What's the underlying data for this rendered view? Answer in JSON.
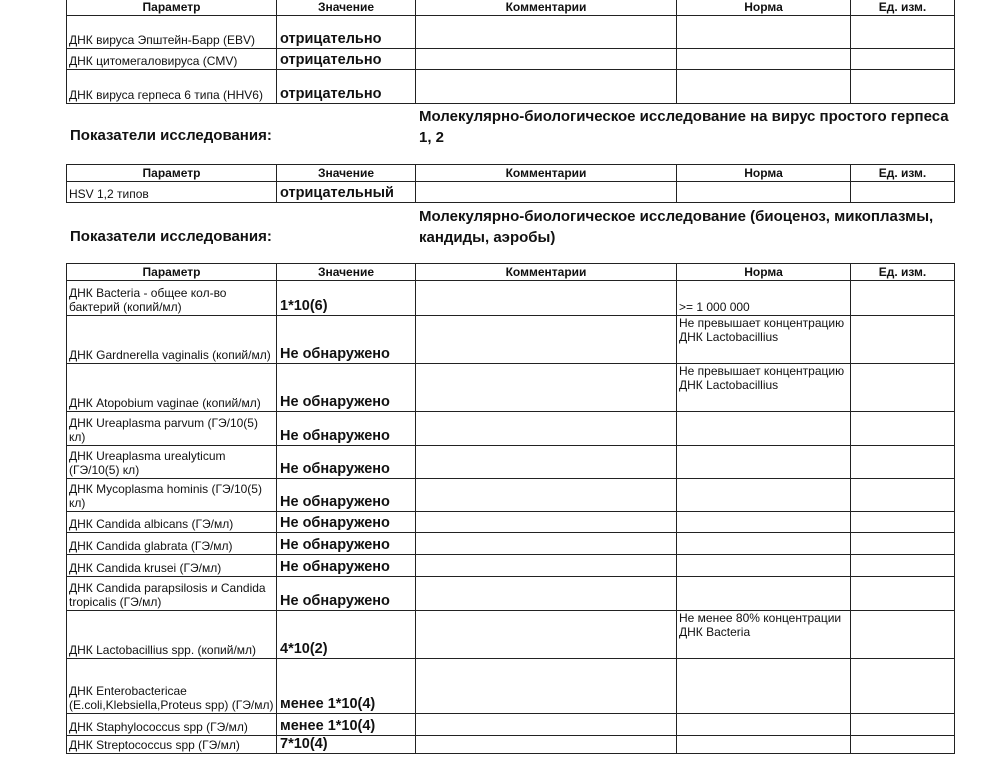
{
  "columns": [
    "Параметр",
    "Значение",
    "Комментарии",
    "Норма",
    "Ед. изм."
  ],
  "section_label": "Показатели исследования:",
  "sections": [
    {
      "title": "",
      "rows": [
        {
          "param": "ДНК вируса Эпштейн-Барр (EBV)",
          "value": "отрицательно",
          "comment": "",
          "norm": "",
          "unit": ""
        },
        {
          "param": "ДНК цитомегаловируса (CMV)",
          "value": "отрицательно",
          "comment": "",
          "norm": "",
          "unit": ""
        },
        {
          "param": "ДНК вируса герпеса 6 типа (HHV6)",
          "value": "отрицательно",
          "comment": "",
          "norm": "",
          "unit": ""
        }
      ]
    },
    {
      "title": "Молекулярно-биологическое исследование  на вирус простого герпеса 1, 2",
      "rows": [
        {
          "param": "HSV 1,2 типов",
          "value": "отрицательный",
          "comment": "",
          "norm": "",
          "unit": ""
        }
      ]
    },
    {
      "title": "Молекулярно-биологическое исследование  (биоценоз, микоплазмы, кандиды, аэробы)",
      "rows": [
        {
          "param": "ДНК Bacteria - общее кол-во бактерий (копий/мл)",
          "value": "1*10(6)",
          "comment": "",
          "norm": ">= 1 000 000",
          "unit": ""
        },
        {
          "param": "ДНК Gardnerella vaginalis (копий/мл)",
          "value": "Не обнаружено",
          "comment": "",
          "norm": "Не превышает концентрацию ДНК Lactobacillius",
          "unit": ""
        },
        {
          "param": "ДНК Atopobium vaginae (копий/мл)",
          "value": "Не обнаружено",
          "comment": "",
          "norm": "Не превышает концентрацию ДНК Lactobacillius",
          "unit": ""
        },
        {
          "param": "ДНК Ureaplasma parvum (ГЭ/10(5) кл)",
          "value": "Не обнаружено",
          "comment": "",
          "norm": "",
          "unit": ""
        },
        {
          "param": "ДНК Ureaplasma urealyticum (ГЭ/10(5) кл)",
          "value": "Не обнаружено",
          "comment": "",
          "norm": "",
          "unit": ""
        },
        {
          "param": "ДНК Mycoplasma hominis (ГЭ/10(5) кл)",
          "value": "Не обнаружено",
          "comment": "",
          "norm": "",
          "unit": ""
        },
        {
          "param": "ДНК Candida albicans (ГЭ/мл)",
          "value": "Не обнаружено",
          "comment": "",
          "norm": "",
          "unit": ""
        },
        {
          "param": "ДНК Candida glabrata (ГЭ/мл)",
          "value": "Не обнаружено",
          "comment": "",
          "norm": "",
          "unit": ""
        },
        {
          "param": "ДНК Candida krusei (ГЭ/мл)",
          "value": "Не обнаружено",
          "comment": "",
          "norm": "",
          "unit": ""
        },
        {
          "param": "ДНК Candida parapsilosis и Candida tropicalis (ГЭ/мл)",
          "value": "Не обнаружено",
          "comment": "",
          "norm": "",
          "unit": ""
        },
        {
          "param": "ДНК Lactobacillius spp. (копий/мл)",
          "value": "4*10(2)",
          "comment": "",
          "norm": "Не менее 80% концентрации ДНК Bacteria",
          "unit": ""
        },
        {
          "param": "ДНК Enterobactericae (E.coli,Klebsiella,Proteus spp) (ГЭ/мл)",
          "value": "менее 1*10(4)",
          "comment": "",
          "norm": "",
          "unit": ""
        },
        {
          "param": "ДНК Staphylococcus spp (ГЭ/мл)",
          "value": "менее 1*10(4)",
          "comment": "",
          "norm": "",
          "unit": ""
        },
        {
          "param": "ДНК Streptococcus spp (ГЭ/мл)",
          "value": "7*10(4)",
          "comment": "",
          "norm": "",
          "unit": ""
        }
      ]
    }
  ]
}
